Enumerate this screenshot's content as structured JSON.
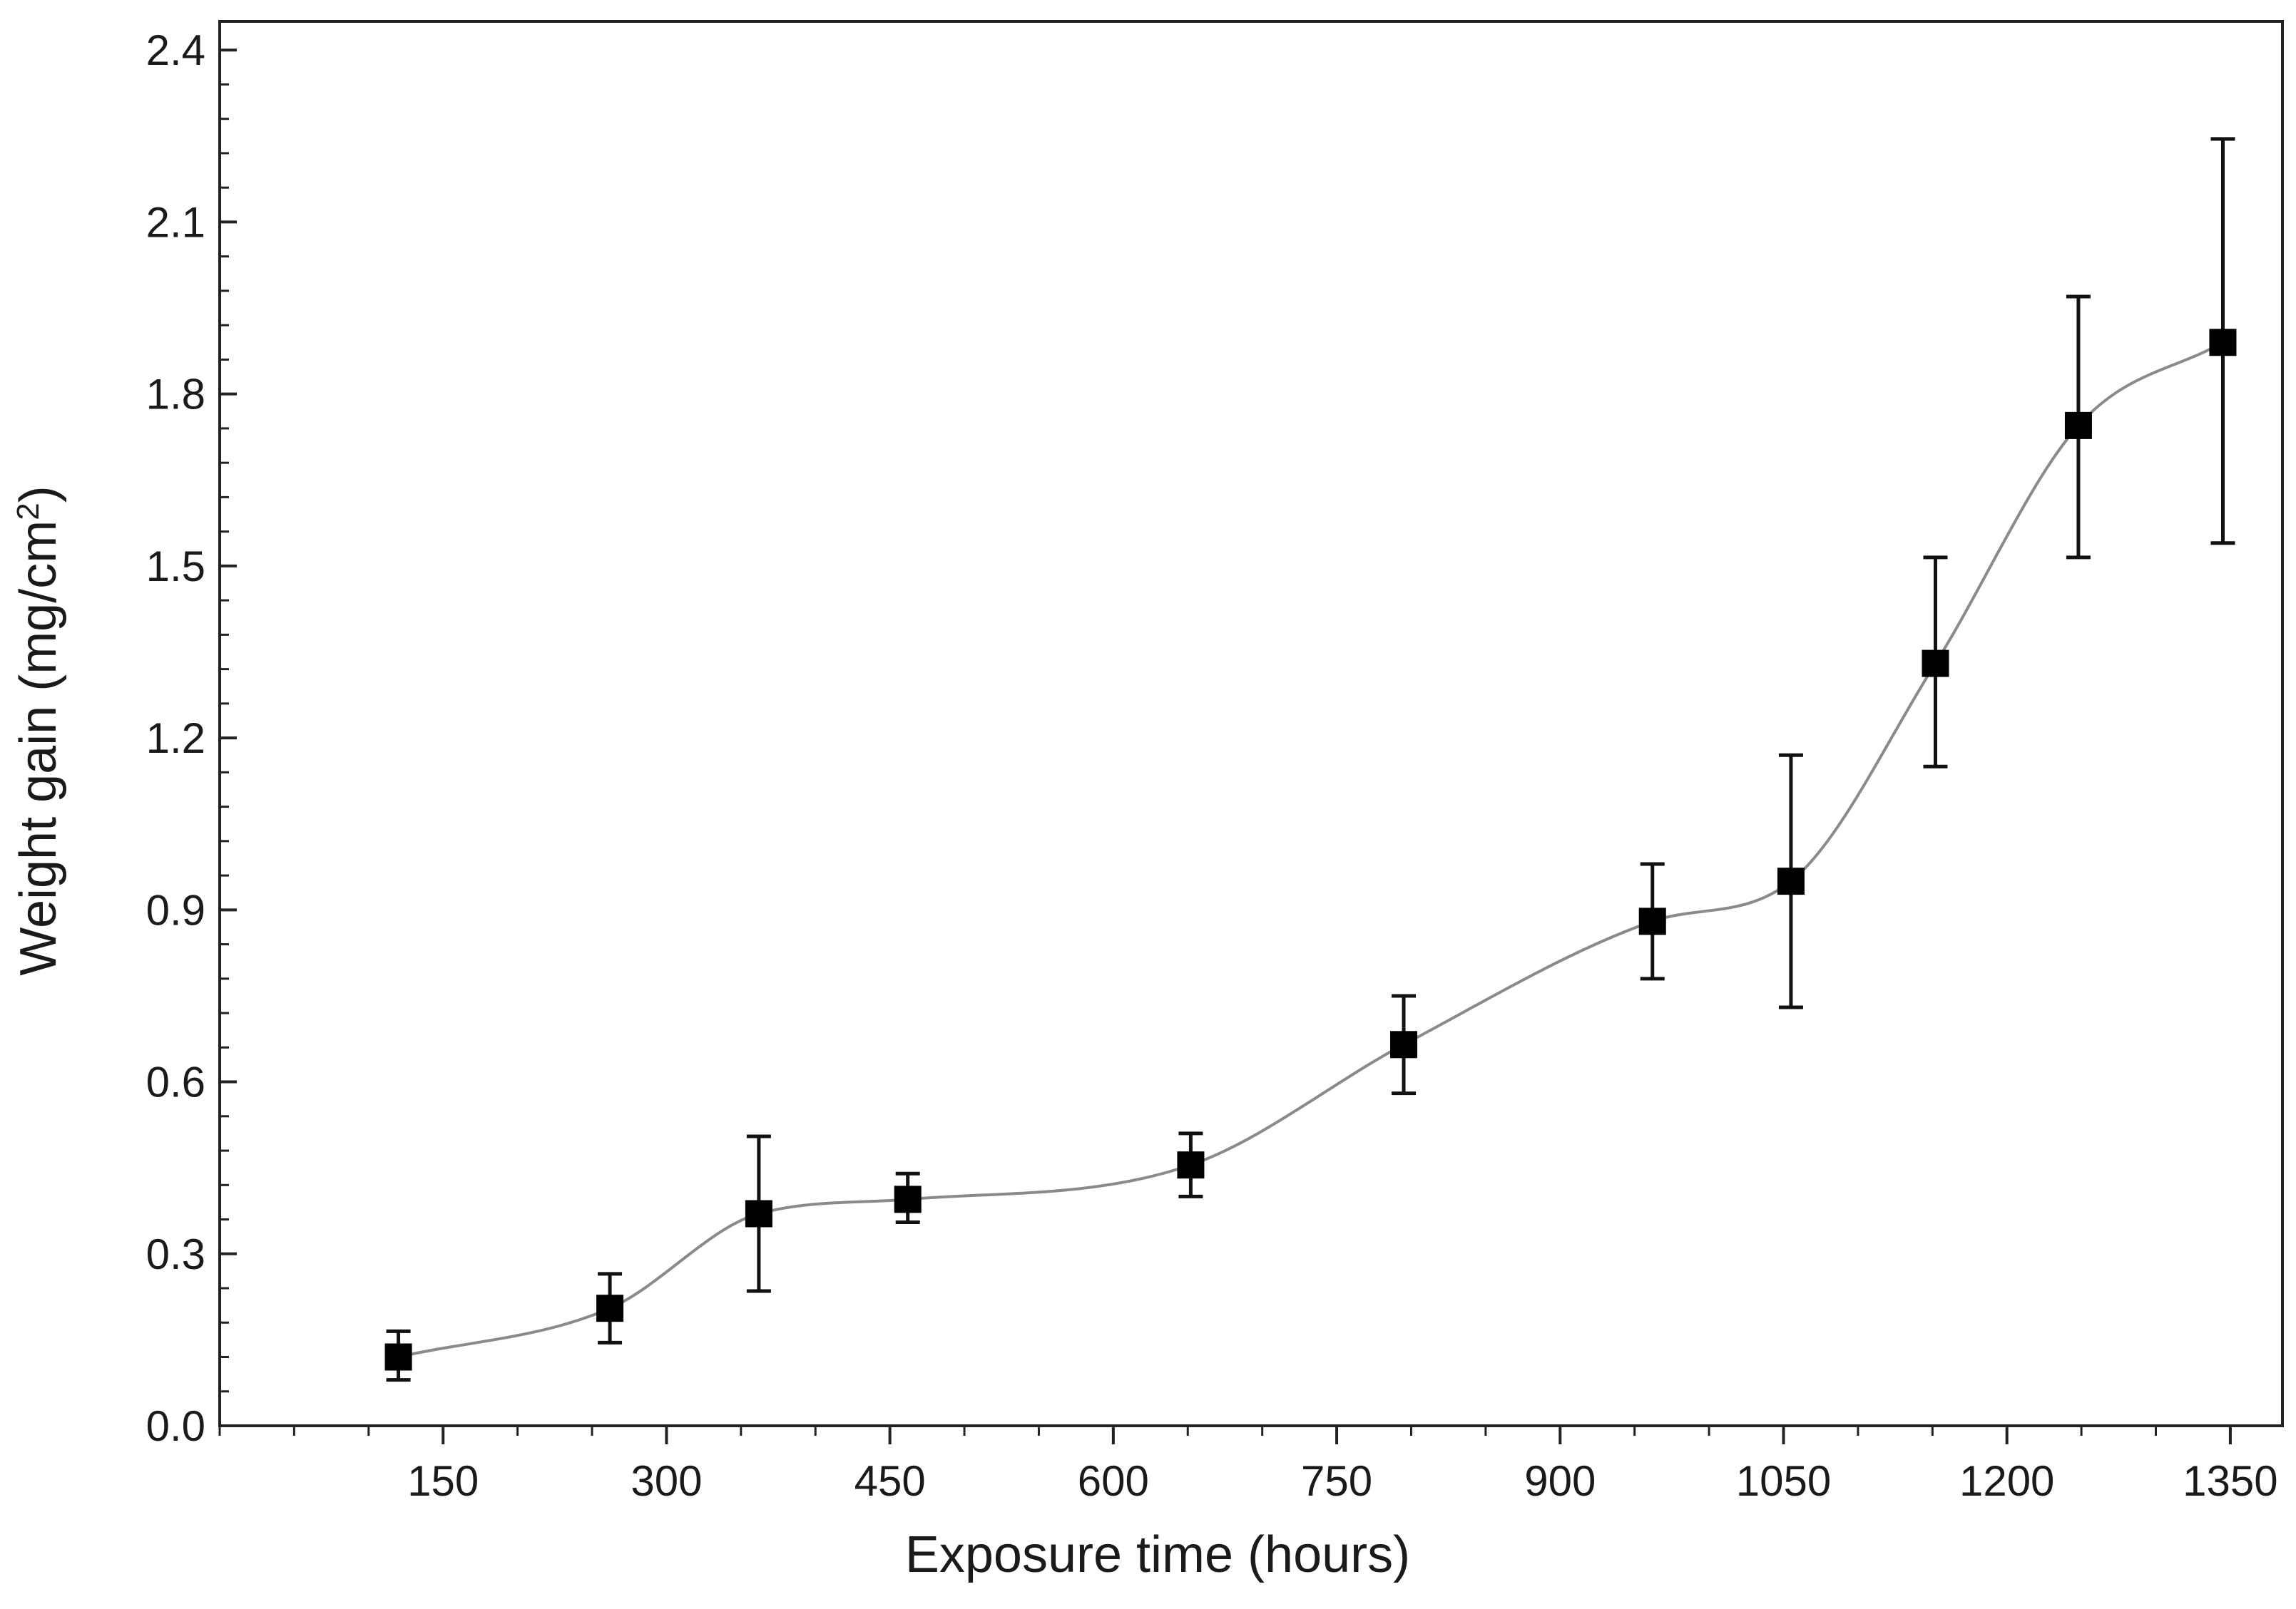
{
  "chart_data": {
    "type": "scatter",
    "title": "",
    "xlabel": "Exposure time (hours)",
    "ylabel": {
      "text": "Weight gain (mg/cm",
      "superscript": "2",
      "suffix": ")"
    },
    "xlim": [
      0,
      1385
    ],
    "ylim": [
      0,
      2.45
    ],
    "x_ticks": [
      150,
      300,
      450,
      600,
      750,
      900,
      1050,
      1200,
      1350
    ],
    "x_tick_labels": [
      "150",
      "300",
      "450",
      "600",
      "750",
      "900",
      "1050",
      "1200",
      "1350"
    ],
    "y_ticks": [
      0.0,
      0.3,
      0.6,
      0.9,
      1.2,
      1.5,
      1.8,
      2.1,
      2.4
    ],
    "y_tick_labels": [
      "0.0",
      "0.3",
      "0.6",
      "0.9",
      "1.2",
      "1.5",
      "1.8",
      "2.1",
      "2.4"
    ],
    "grid": false,
    "legend": "none",
    "series": [
      {
        "marker": "square",
        "color": "#000000",
        "fit_line_color": "#8a8a8a",
        "points": [
          {
            "x": 120,
            "y": 0.12,
            "err_low": 0.08,
            "err_high": 0.165
          },
          {
            "x": 262,
            "y": 0.205,
            "err_low": 0.145,
            "err_high": 0.265
          },
          {
            "x": 362,
            "y": 0.37,
            "err_low": 0.235,
            "err_high": 0.505
          },
          {
            "x": 462,
            "y": 0.395,
            "err_low": 0.355,
            "err_high": 0.44
          },
          {
            "x": 652,
            "y": 0.455,
            "err_low": 0.4,
            "err_high": 0.51
          },
          {
            "x": 795,
            "y": 0.665,
            "err_low": 0.58,
            "err_high": 0.75
          },
          {
            "x": 962,
            "y": 0.88,
            "err_low": 0.78,
            "err_high": 0.98
          },
          {
            "x": 1055,
            "y": 0.95,
            "err_low": 0.73,
            "err_high": 1.17
          },
          {
            "x": 1152,
            "y": 1.33,
            "err_low": 1.15,
            "err_high": 1.515
          },
          {
            "x": 1248,
            "y": 1.745,
            "err_low": 1.515,
            "err_high": 1.97
          },
          {
            "x": 1345,
            "y": 1.89,
            "err_low": 1.54,
            "err_high": 2.245
          }
        ]
      }
    ]
  }
}
